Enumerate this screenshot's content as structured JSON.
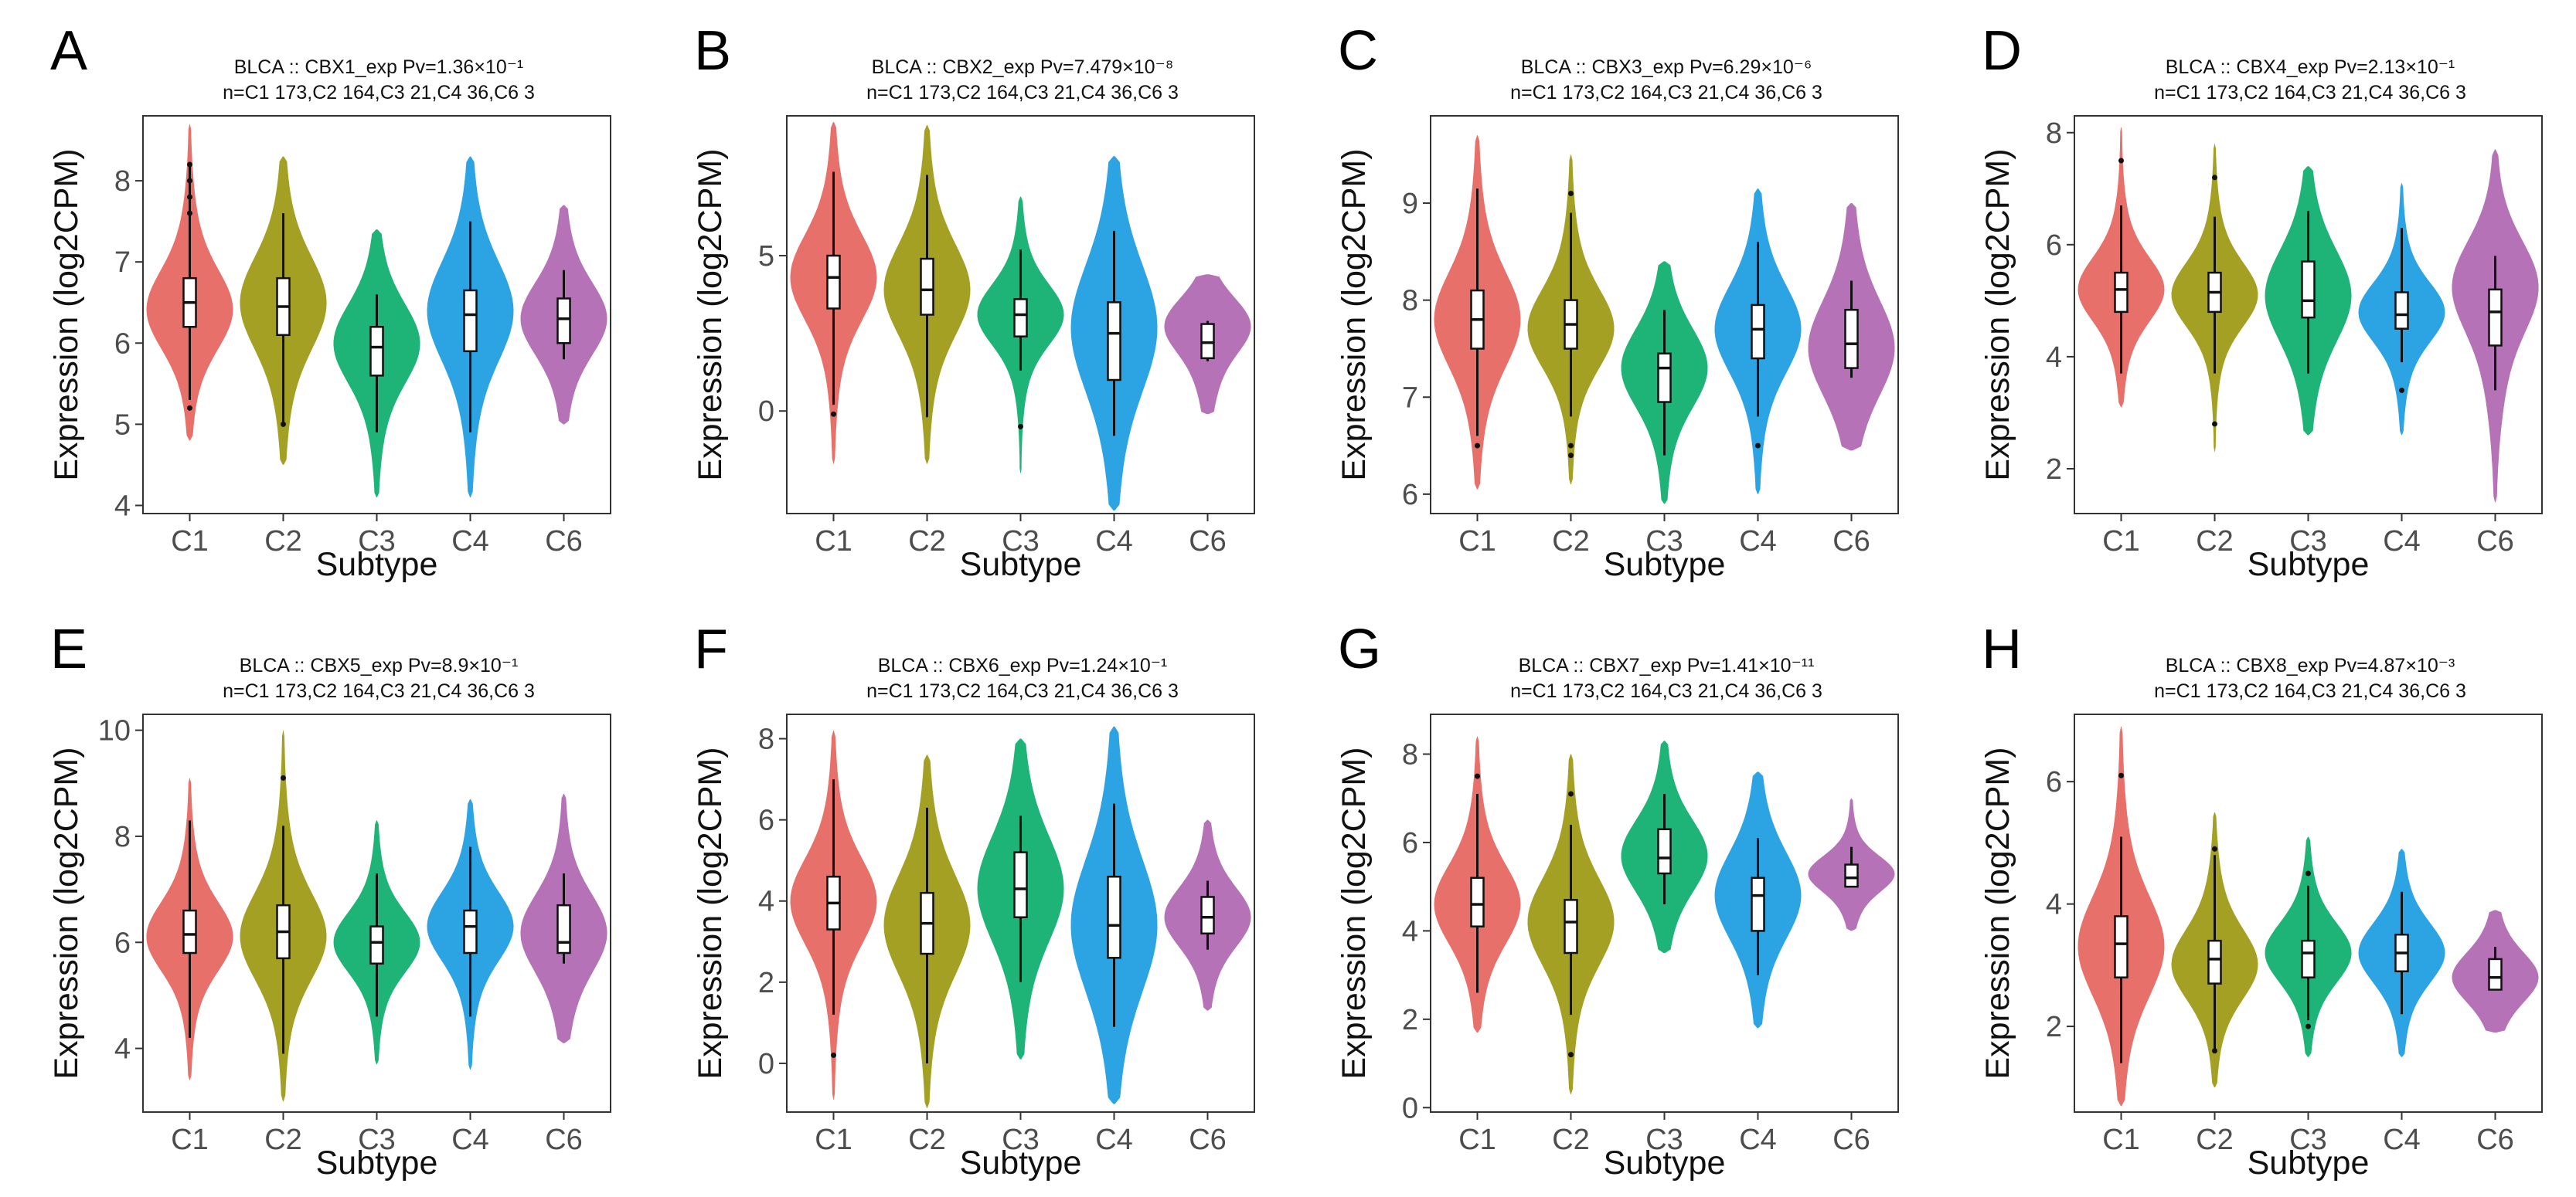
{
  "figure": {
    "colors": {
      "C1": "#E8706A",
      "C2": "#A3A023",
      "C3": "#1EB478",
      "C4": "#2CA4E4",
      "C6": "#B572B7"
    }
  },
  "chart_data": [
    {
      "type": "violin",
      "panel_label": "A",
      "title": "BLCA :: CBX1_exp  Pv=1.36×10⁻¹",
      "subtitle": "n=C1 173,C2 164,C3 21,C4 36,C6 3",
      "xlabel": "Subtype",
      "ylabel": "Expression (log2CPM)",
      "categories": [
        "C1",
        "C2",
        "C3",
        "C4",
        "C6"
      ],
      "ylim": [
        3.9,
        8.8
      ],
      "yticks": [
        4,
        5,
        6,
        7,
        8
      ],
      "series": [
        {
          "name": "C1",
          "min": 4.8,
          "max": 8.7,
          "q1": 6.2,
          "median": 6.5,
          "q3": 6.8,
          "whisker_low": 5.3,
          "whisker_high": 8.2,
          "mode": 6.4,
          "outliers": [
            7.6,
            7.8,
            8.0,
            8.2,
            5.2
          ]
        },
        {
          "name": "C2",
          "min": 4.5,
          "max": 8.3,
          "q1": 6.1,
          "median": 6.45,
          "q3": 6.8,
          "whisker_low": 5.0,
          "whisker_high": 7.6,
          "mode": 6.5,
          "outliers": [
            5.0
          ]
        },
        {
          "name": "C3",
          "min": 4.1,
          "max": 7.4,
          "q1": 5.6,
          "median": 5.95,
          "q3": 6.2,
          "whisker_low": 4.9,
          "whisker_high": 6.6,
          "mode": 6.0,
          "outliers": []
        },
        {
          "name": "C4",
          "min": 4.1,
          "max": 8.3,
          "q1": 5.9,
          "median": 6.35,
          "q3": 6.65,
          "whisker_low": 4.9,
          "whisker_high": 7.5,
          "mode": 6.4,
          "outliers": []
        },
        {
          "name": "C6",
          "min": 5.0,
          "max": 7.7,
          "q1": 6.0,
          "median": 6.3,
          "q3": 6.55,
          "whisker_low": 5.8,
          "whisker_high": 6.9,
          "mode": 6.3,
          "outliers": []
        }
      ]
    },
    {
      "type": "violin",
      "panel_label": "B",
      "title": "BLCA :: CBX2_exp  Pv=7.479×10⁻⁸",
      "subtitle": "n=C1 173,C2 164,C3 21,C4 36,C6 3",
      "xlabel": "Subtype",
      "ylabel": "Expression (log2CPM)",
      "categories": [
        "C1",
        "C2",
        "C3",
        "C4",
        "C6"
      ],
      "ylim": [
        -3.3,
        9.5
      ],
      "yticks": [
        0,
        5
      ],
      "series": [
        {
          "name": "C1",
          "min": -1.7,
          "max": 9.3,
          "q1": 3.3,
          "median": 4.3,
          "q3": 5.0,
          "whisker_low": 0.2,
          "whisker_high": 7.7,
          "mode": 4.3,
          "outliers": [
            -0.1
          ]
        },
        {
          "name": "C2",
          "min": -1.7,
          "max": 9.2,
          "q1": 3.1,
          "median": 3.9,
          "q3": 4.9,
          "whisker_low": -0.2,
          "whisker_high": 7.6,
          "mode": 3.9,
          "outliers": []
        },
        {
          "name": "C3",
          "min": -2.0,
          "max": 6.9,
          "q1": 2.4,
          "median": 3.1,
          "q3": 3.6,
          "whisker_low": 1.3,
          "whisker_high": 5.2,
          "mode": 3.1,
          "outliers": [
            -0.5
          ]
        },
        {
          "name": "C4",
          "min": -3.2,
          "max": 8.2,
          "q1": 1.0,
          "median": 2.5,
          "q3": 3.5,
          "whisker_low": -0.8,
          "whisker_high": 5.8,
          "mode": 2.7,
          "outliers": []
        },
        {
          "name": "C6",
          "min": -0.1,
          "max": 4.4,
          "q1": 1.7,
          "median": 2.2,
          "q3": 2.8,
          "whisker_low": 1.6,
          "whisker_high": 2.9,
          "mode": 2.8,
          "outliers": []
        }
      ]
    },
    {
      "type": "violin",
      "panel_label": "C",
      "title": "BLCA :: CBX3_exp  Pv=6.29×10⁻⁶",
      "subtitle": "n=C1 173,C2 164,C3 21,C4 36,C6 3",
      "xlabel": "Subtype",
      "ylabel": "Expression (log2CPM)",
      "categories": [
        "C1",
        "C2",
        "C3",
        "C4",
        "C6"
      ],
      "ylim": [
        5.8,
        9.9
      ],
      "yticks": [
        6,
        7,
        8,
        9
      ],
      "series": [
        {
          "name": "C1",
          "min": 6.05,
          "max": 9.7,
          "q1": 7.5,
          "median": 7.8,
          "q3": 8.1,
          "whisker_low": 6.6,
          "whisker_high": 9.15,
          "mode": 7.8,
          "outliers": [
            6.5
          ]
        },
        {
          "name": "C2",
          "min": 6.1,
          "max": 9.5,
          "q1": 7.5,
          "median": 7.75,
          "q3": 8.0,
          "whisker_low": 6.8,
          "whisker_high": 8.9,
          "mode": 7.7,
          "outliers": [
            6.5,
            6.4,
            9.1
          ]
        },
        {
          "name": "C3",
          "min": 5.9,
          "max": 8.4,
          "q1": 6.95,
          "median": 7.3,
          "q3": 7.45,
          "whisker_low": 6.4,
          "whisker_high": 7.9,
          "mode": 7.3,
          "outliers": []
        },
        {
          "name": "C4",
          "min": 6.0,
          "max": 9.15,
          "q1": 7.4,
          "median": 7.7,
          "q3": 7.95,
          "whisker_low": 6.8,
          "whisker_high": 8.6,
          "mode": 7.7,
          "outliers": [
            6.5
          ]
        },
        {
          "name": "C6",
          "min": 6.45,
          "max": 9.0,
          "q1": 7.3,
          "median": 7.55,
          "q3": 7.9,
          "whisker_low": 7.2,
          "whisker_high": 8.2,
          "mode": 7.5,
          "outliers": []
        }
      ]
    },
    {
      "type": "violin",
      "panel_label": "D",
      "title": "BLCA :: CBX4_exp  Pv=2.13×10⁻¹",
      "subtitle": "n=C1 173,C2 164,C3 21,C4 36,C6 3",
      "xlabel": "Subtype",
      "ylabel": "Expression (log2CPM)",
      "categories": [
        "C1",
        "C2",
        "C3",
        "C4",
        "C6"
      ],
      "ylim": [
        1.2,
        8.3
      ],
      "yticks": [
        2,
        4,
        6,
        8
      ],
      "series": [
        {
          "name": "C1",
          "min": 3.1,
          "max": 8.1,
          "q1": 4.8,
          "median": 5.2,
          "q3": 5.5,
          "whisker_low": 3.7,
          "whisker_high": 6.7,
          "mode": 5.2,
          "outliers": [
            7.5
          ]
        },
        {
          "name": "C2",
          "min": 2.3,
          "max": 7.8,
          "q1": 4.8,
          "median": 5.15,
          "q3": 5.5,
          "whisker_low": 3.7,
          "whisker_high": 6.5,
          "mode": 5.1,
          "outliers": [
            7.2,
            2.8
          ]
        },
        {
          "name": "C3",
          "min": 2.6,
          "max": 7.4,
          "q1": 4.7,
          "median": 5.0,
          "q3": 5.7,
          "whisker_low": 3.7,
          "whisker_high": 6.6,
          "mode": 5.1,
          "outliers": []
        },
        {
          "name": "C4",
          "min": 2.6,
          "max": 7.1,
          "q1": 4.5,
          "median": 4.75,
          "q3": 5.15,
          "whisker_low": 3.9,
          "whisker_high": 6.3,
          "mode": 4.8,
          "outliers": [
            3.4
          ]
        },
        {
          "name": "C6",
          "min": 1.4,
          "max": 7.7,
          "q1": 4.2,
          "median": 4.8,
          "q3": 5.2,
          "whisker_low": 3.4,
          "whisker_high": 5.8,
          "mode": 5.3,
          "outliers": []
        }
      ]
    },
    {
      "type": "violin",
      "panel_label": "E",
      "title": "BLCA :: CBX5_exp  Pv=8.9×10⁻¹",
      "subtitle": "n=C1 173,C2 164,C3 21,C4 36,C6 3",
      "xlabel": "Subtype",
      "ylabel": "Expression (log2CPM)",
      "categories": [
        "C1",
        "C2",
        "C3",
        "C4",
        "C6"
      ],
      "ylim": [
        2.8,
        10.3
      ],
      "yticks": [
        4,
        6,
        8,
        10
      ],
      "series": [
        {
          "name": "C1",
          "min": 3.4,
          "max": 9.1,
          "q1": 5.8,
          "median": 6.15,
          "q3": 6.6,
          "whisker_low": 4.2,
          "whisker_high": 8.3,
          "mode": 6.1,
          "outliers": []
        },
        {
          "name": "C2",
          "min": 3.0,
          "max": 10.0,
          "q1": 5.7,
          "median": 6.2,
          "q3": 6.7,
          "whisker_low": 3.9,
          "whisker_high": 8.2,
          "mode": 6.1,
          "outliers": [
            9.1
          ]
        },
        {
          "name": "C3",
          "min": 3.7,
          "max": 8.3,
          "q1": 5.6,
          "median": 6.0,
          "q3": 6.3,
          "whisker_low": 4.6,
          "whisker_high": 7.3,
          "mode": 6.0,
          "outliers": []
        },
        {
          "name": "C4",
          "min": 3.6,
          "max": 8.7,
          "q1": 5.8,
          "median": 6.3,
          "q3": 6.6,
          "whisker_low": 4.6,
          "whisker_high": 7.8,
          "mode": 6.3,
          "outliers": []
        },
        {
          "name": "C6",
          "min": 4.1,
          "max": 8.8,
          "q1": 5.8,
          "median": 6.0,
          "q3": 6.7,
          "whisker_low": 5.6,
          "whisker_high": 7.3,
          "mode": 6.2,
          "outliers": []
        }
      ]
    },
    {
      "type": "violin",
      "panel_label": "F",
      "title": "BLCA :: CBX6_exp  Pv=1.24×10⁻¹",
      "subtitle": "n=C1 173,C2 164,C3 21,C4 36,C6 3",
      "xlabel": "Subtype",
      "ylabel": "Expression (log2CPM)",
      "categories": [
        "C1",
        "C2",
        "C3",
        "C4",
        "C6"
      ],
      "ylim": [
        -1.2,
        8.6
      ],
      "yticks": [
        0,
        2,
        4,
        6,
        8
      ],
      "series": [
        {
          "name": "C1",
          "min": -0.9,
          "max": 8.2,
          "q1": 3.3,
          "median": 3.95,
          "q3": 4.6,
          "whisker_low": 1.2,
          "whisker_high": 7.0,
          "mode": 4.0,
          "outliers": [
            0.2
          ]
        },
        {
          "name": "C2",
          "min": -1.1,
          "max": 7.6,
          "q1": 2.7,
          "median": 3.45,
          "q3": 4.2,
          "whisker_low": 0.0,
          "whisker_high": 6.3,
          "mode": 3.4,
          "outliers": []
        },
        {
          "name": "C3",
          "min": 0.1,
          "max": 8.0,
          "q1": 3.6,
          "median": 4.3,
          "q3": 5.2,
          "whisker_low": 2.0,
          "whisker_high": 6.1,
          "mode": 4.3,
          "outliers": []
        },
        {
          "name": "C4",
          "min": -1.0,
          "max": 8.3,
          "q1": 2.6,
          "median": 3.4,
          "q3": 4.6,
          "whisker_low": 0.9,
          "whisker_high": 6.4,
          "mode": 3.4,
          "outliers": []
        },
        {
          "name": "C6",
          "min": 1.3,
          "max": 6.0,
          "q1": 3.2,
          "median": 3.6,
          "q3": 4.1,
          "whisker_low": 2.8,
          "whisker_high": 4.5,
          "mode": 3.6,
          "outliers": []
        }
      ]
    },
    {
      "type": "violin",
      "panel_label": "G",
      "title": "BLCA :: CBX7_exp  Pv=1.41×10⁻¹¹",
      "subtitle": "n=C1 173,C2 164,C3 21,C4 36,C6 3",
      "xlabel": "Subtype",
      "ylabel": "Expression (log2CPM)",
      "categories": [
        "C1",
        "C2",
        "C3",
        "C4",
        "C6"
      ],
      "ylim": [
        -0.1,
        8.9
      ],
      "yticks": [
        0,
        2,
        4,
        6,
        8
      ],
      "series": [
        {
          "name": "C1",
          "min": 1.7,
          "max": 8.4,
          "q1": 4.1,
          "median": 4.6,
          "q3": 5.2,
          "whisker_low": 2.6,
          "whisker_high": 7.1,
          "mode": 4.6,
          "outliers": [
            7.5
          ]
        },
        {
          "name": "C2",
          "min": 0.3,
          "max": 8.0,
          "q1": 3.5,
          "median": 4.2,
          "q3": 4.7,
          "whisker_low": 2.1,
          "whisker_high": 6.4,
          "mode": 4.2,
          "outliers": [
            7.1,
            1.2
          ]
        },
        {
          "name": "C3",
          "min": 3.5,
          "max": 8.3,
          "q1": 5.3,
          "median": 5.65,
          "q3": 6.3,
          "whisker_low": 4.6,
          "whisker_high": 7.1,
          "mode": 5.7,
          "outliers": []
        },
        {
          "name": "C4",
          "min": 1.8,
          "max": 7.6,
          "q1": 4.0,
          "median": 4.8,
          "q3": 5.2,
          "whisker_low": 3.0,
          "whisker_high": 6.1,
          "mode": 4.8,
          "outliers": []
        },
        {
          "name": "C6",
          "min": 4.0,
          "max": 7.0,
          "q1": 5.0,
          "median": 5.2,
          "q3": 5.5,
          "whisker_low": 5.0,
          "whisker_high": 5.9,
          "mode": 5.3,
          "outliers": []
        }
      ]
    },
    {
      "type": "violin",
      "panel_label": "H",
      "title": "BLCA :: CBX8_exp  Pv=4.87×10⁻³",
      "subtitle": "n=C1 173,C2 164,C3 21,C4 36,C6 3",
      "xlabel": "Subtype",
      "ylabel": "Expression (log2CPM)",
      "categories": [
        "C1",
        "C2",
        "C3",
        "C4",
        "C6"
      ],
      "ylim": [
        0.6,
        7.1
      ],
      "yticks": [
        2,
        4,
        6
      ],
      "series": [
        {
          "name": "C1",
          "min": 0.7,
          "max": 6.9,
          "q1": 2.8,
          "median": 3.35,
          "q3": 3.8,
          "whisker_low": 1.4,
          "whisker_high": 5.1,
          "mode": 3.3,
          "outliers": [
            6.1
          ]
        },
        {
          "name": "C2",
          "min": 1.0,
          "max": 5.5,
          "q1": 2.7,
          "median": 3.1,
          "q3": 3.4,
          "whisker_low": 1.6,
          "whisker_high": 4.8,
          "mode": 3.0,
          "outliers": [
            4.9,
            1.6
          ]
        },
        {
          "name": "C3",
          "min": 1.5,
          "max": 5.1,
          "q1": 2.8,
          "median": 3.2,
          "q3": 3.4,
          "whisker_low": 2.1,
          "whisker_high": 4.3,
          "mode": 3.2,
          "outliers": [
            4.5,
            2.0
          ]
        },
        {
          "name": "C4",
          "min": 1.5,
          "max": 4.9,
          "q1": 2.9,
          "median": 3.2,
          "q3": 3.5,
          "whisker_low": 2.2,
          "whisker_high": 4.2,
          "mode": 3.2,
          "outliers": []
        },
        {
          "name": "C6",
          "min": 1.9,
          "max": 3.9,
          "q1": 2.6,
          "median": 2.8,
          "q3": 3.1,
          "whisker_low": 2.6,
          "whisker_high": 3.3,
          "mode": 2.8,
          "outliers": []
        }
      ]
    }
  ]
}
